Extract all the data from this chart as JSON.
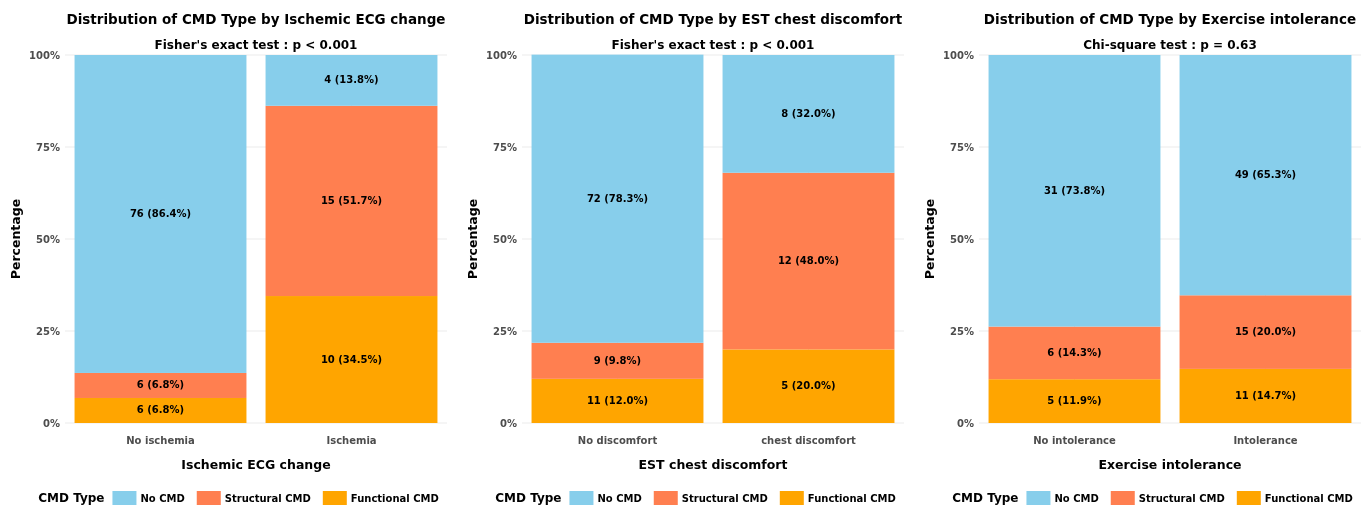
{
  "chart_data": [
    {
      "type": "bar",
      "title": "Distribution of CMD Type by Ischemic ECG change",
      "subtitle": "Fisher's exact test : p < 0.001",
      "xlabel": "Ischemic ECG change",
      "ylabel": "Percentage",
      "legend_title": "CMD Type",
      "categories": [
        "No ischemia",
        "Ischemia"
      ],
      "stacked": true,
      "ylim": [
        0,
        100
      ],
      "yticks": [
        {
          "value": 0,
          "label": "0%"
        },
        {
          "value": 25,
          "label": "25%"
        },
        {
          "value": 50,
          "label": "50%"
        },
        {
          "value": 75,
          "label": "75%"
        },
        {
          "value": 100,
          "label": "100%"
        }
      ],
      "grid": true,
      "legend": "bottom",
      "series": [
        {
          "name": "Functional CMD",
          "color": "#ffa500",
          "values": [
            6.8,
            34.5
          ],
          "value_labels": [
            "6 (6.8%)",
            "10 (34.5%)"
          ]
        },
        {
          "name": "Structural CMD",
          "color": "#ff7f50",
          "values": [
            6.8,
            51.7
          ],
          "value_labels": [
            "6 (6.8%)",
            "15 (51.7%)"
          ]
        },
        {
          "name": "No CMD",
          "color": "#87ceeb",
          "values": [
            86.4,
            13.8
          ],
          "value_labels": [
            "76 (86.4%)",
            "4 (13.8%)"
          ]
        }
      ]
    },
    {
      "type": "bar",
      "title": "Distribution of CMD Type by EST chest discomfort",
      "subtitle": "Fisher's exact test : p < 0.001",
      "xlabel": "EST chest discomfort",
      "ylabel": "Percentage",
      "legend_title": "CMD Type",
      "categories": [
        "No discomfort",
        "chest discomfort"
      ],
      "stacked": true,
      "ylim": [
        0,
        100
      ],
      "yticks": [
        {
          "value": 0,
          "label": "0%"
        },
        {
          "value": 25,
          "label": "25%"
        },
        {
          "value": 50,
          "label": "50%"
        },
        {
          "value": 75,
          "label": "75%"
        },
        {
          "value": 100,
          "label": "100%"
        }
      ],
      "grid": true,
      "legend": "bottom",
      "series": [
        {
          "name": "Functional CMD",
          "color": "#ffa500",
          "values": [
            12.0,
            20.0
          ],
          "value_labels": [
            "11 (12.0%)",
            "5 (20.0%)"
          ]
        },
        {
          "name": "Structural CMD",
          "color": "#ff7f50",
          "values": [
            9.8,
            48.0
          ],
          "value_labels": [
            "9 (9.8%)",
            "12 (48.0%)"
          ]
        },
        {
          "name": "No CMD",
          "color": "#87ceeb",
          "values": [
            78.3,
            32.0
          ],
          "value_labels": [
            "72 (78.3%)",
            "8 (32.0%)"
          ]
        }
      ]
    },
    {
      "type": "bar",
      "title": "Distribution of CMD Type by Exercise intolerance",
      "subtitle": "Chi-square test : p = 0.63",
      "xlabel": "Exercise intolerance",
      "ylabel": "Percentage",
      "legend_title": "CMD Type",
      "categories": [
        "No intolerance",
        "Intolerance"
      ],
      "stacked": true,
      "ylim": [
        0,
        100
      ],
      "yticks": [
        {
          "value": 0,
          "label": "0%"
        },
        {
          "value": 25,
          "label": "25%"
        },
        {
          "value": 50,
          "label": "50%"
        },
        {
          "value": 75,
          "label": "75%"
        },
        {
          "value": 100,
          "label": "100%"
        }
      ],
      "grid": true,
      "legend": "bottom",
      "series": [
        {
          "name": "Functional CMD",
          "color": "#ffa500",
          "values": [
            11.9,
            14.7
          ],
          "value_labels": [
            "5 (11.9%)",
            "11 (14.7%)"
          ]
        },
        {
          "name": "Structural CMD",
          "color": "#ff7f50",
          "values": [
            14.3,
            20.0
          ],
          "value_labels": [
            "6 (14.3%)",
            "15 (20.0%)"
          ]
        },
        {
          "name": "No CMD",
          "color": "#87ceeb",
          "values": [
            73.8,
            65.3
          ],
          "value_labels": [
            "31 (73.8%)",
            "49 (65.3%)"
          ]
        }
      ]
    }
  ]
}
